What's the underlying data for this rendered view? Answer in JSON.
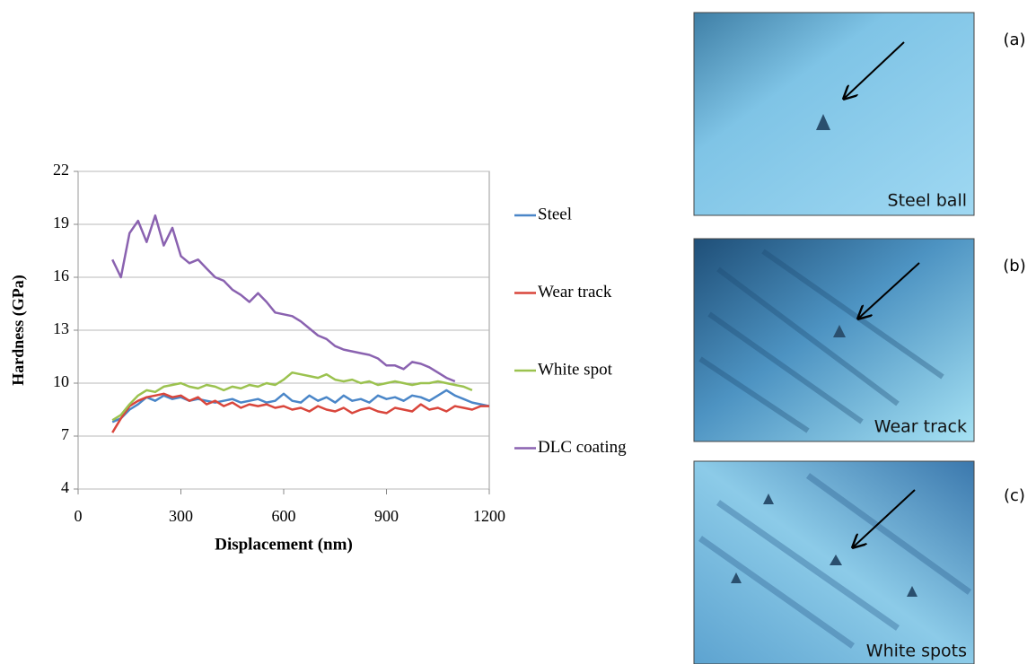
{
  "chart_data": {
    "type": "line",
    "y_label": "Hardness (GPa)",
    "x_label": "Displacement (nm)",
    "x": [
      100,
      125,
      150,
      175,
      200,
      225,
      250,
      275,
      300,
      325,
      350,
      375,
      400,
      425,
      450,
      475,
      500,
      525,
      550,
      575,
      600,
      625,
      650,
      675,
      700,
      725,
      750,
      775,
      800,
      825,
      850,
      875,
      900,
      925,
      950,
      975,
      1000,
      1025,
      1050,
      1075,
      1100,
      1125,
      1150,
      1175,
      1200
    ],
    "series": [
      {
        "name": "Steel",
        "color": "#4a86c8",
        "values": [
          7.8,
          8.0,
          8.5,
          8.8,
          9.2,
          9.0,
          9.3,
          9.1,
          9.2,
          9.0,
          9.1,
          9.0,
          8.9,
          9.0,
          9.1,
          8.9,
          9.0,
          9.1,
          8.9,
          9.0,
          9.4,
          9.0,
          8.9,
          9.3,
          9.0,
          9.2,
          8.9,
          9.3,
          9.0,
          9.1,
          8.9,
          9.3,
          9.1,
          9.2,
          9.0,
          9.3,
          9.2,
          9.0,
          9.3,
          9.6,
          9.3,
          9.1,
          8.9,
          8.8,
          8.7
        ]
      },
      {
        "name": "Wear track",
        "color": "#d9463c",
        "values": [
          7.2,
          8.0,
          8.7,
          9.0,
          9.2,
          9.3,
          9.4,
          9.2,
          9.3,
          9.0,
          9.2,
          8.8,
          9.0,
          8.7,
          8.9,
          8.6,
          8.8,
          8.7,
          8.8,
          8.6,
          8.7,
          8.5,
          8.6,
          8.4,
          8.7,
          8.5,
          8.4,
          8.6,
          8.3,
          8.5,
          8.6,
          8.4,
          8.3,
          8.6,
          8.5,
          8.4,
          8.8,
          8.5,
          8.6,
          8.4,
          8.7,
          8.6,
          8.5,
          8.7,
          8.7
        ]
      },
      {
        "name": "White spot",
        "color": "#9bc24f",
        "values": [
          7.9,
          8.2,
          8.8,
          9.3,
          9.6,
          9.5,
          9.8,
          9.9,
          10.0,
          9.8,
          9.7,
          9.9,
          9.8,
          9.6,
          9.8,
          9.7,
          9.9,
          9.8,
          10.0,
          9.9,
          10.2,
          10.6,
          10.5,
          10.4,
          10.3,
          10.5,
          10.2,
          10.1,
          10.2,
          10.0,
          10.1,
          9.9,
          10.0,
          10.1,
          10.0,
          9.9,
          10.0,
          10.0,
          10.1,
          10.0,
          9.9,
          9.8,
          9.6,
          null,
          null
        ]
      },
      {
        "name": "DLC coating",
        "color": "#8a62b0",
        "values": [
          17.0,
          16.0,
          18.5,
          19.2,
          18.0,
          19.5,
          17.8,
          18.8,
          17.2,
          16.8,
          17.0,
          16.5,
          16.0,
          15.8,
          15.3,
          15.0,
          14.6,
          15.1,
          14.6,
          14.0,
          13.9,
          13.8,
          13.5,
          13.1,
          12.7,
          12.5,
          12.1,
          11.9,
          11.8,
          11.7,
          11.6,
          11.4,
          11.0,
          11.0,
          10.8,
          11.2,
          11.1,
          10.9,
          10.6,
          10.3,
          10.1,
          null,
          null,
          null,
          null
        ]
      }
    ],
    "xlim": [
      0,
      1200
    ],
    "xticks": [
      0,
      300,
      600,
      900,
      1200
    ],
    "ylim": [
      4,
      22
    ],
    "yticks": [
      4,
      7,
      10,
      13,
      16,
      19,
      22
    ],
    "grid": true
  },
  "panels": [
    {
      "label": "(a)",
      "caption": "Steel ball"
    },
    {
      "label": "(b)",
      "caption": "Wear track"
    },
    {
      "label": "(c)",
      "caption": "White spots"
    }
  ]
}
